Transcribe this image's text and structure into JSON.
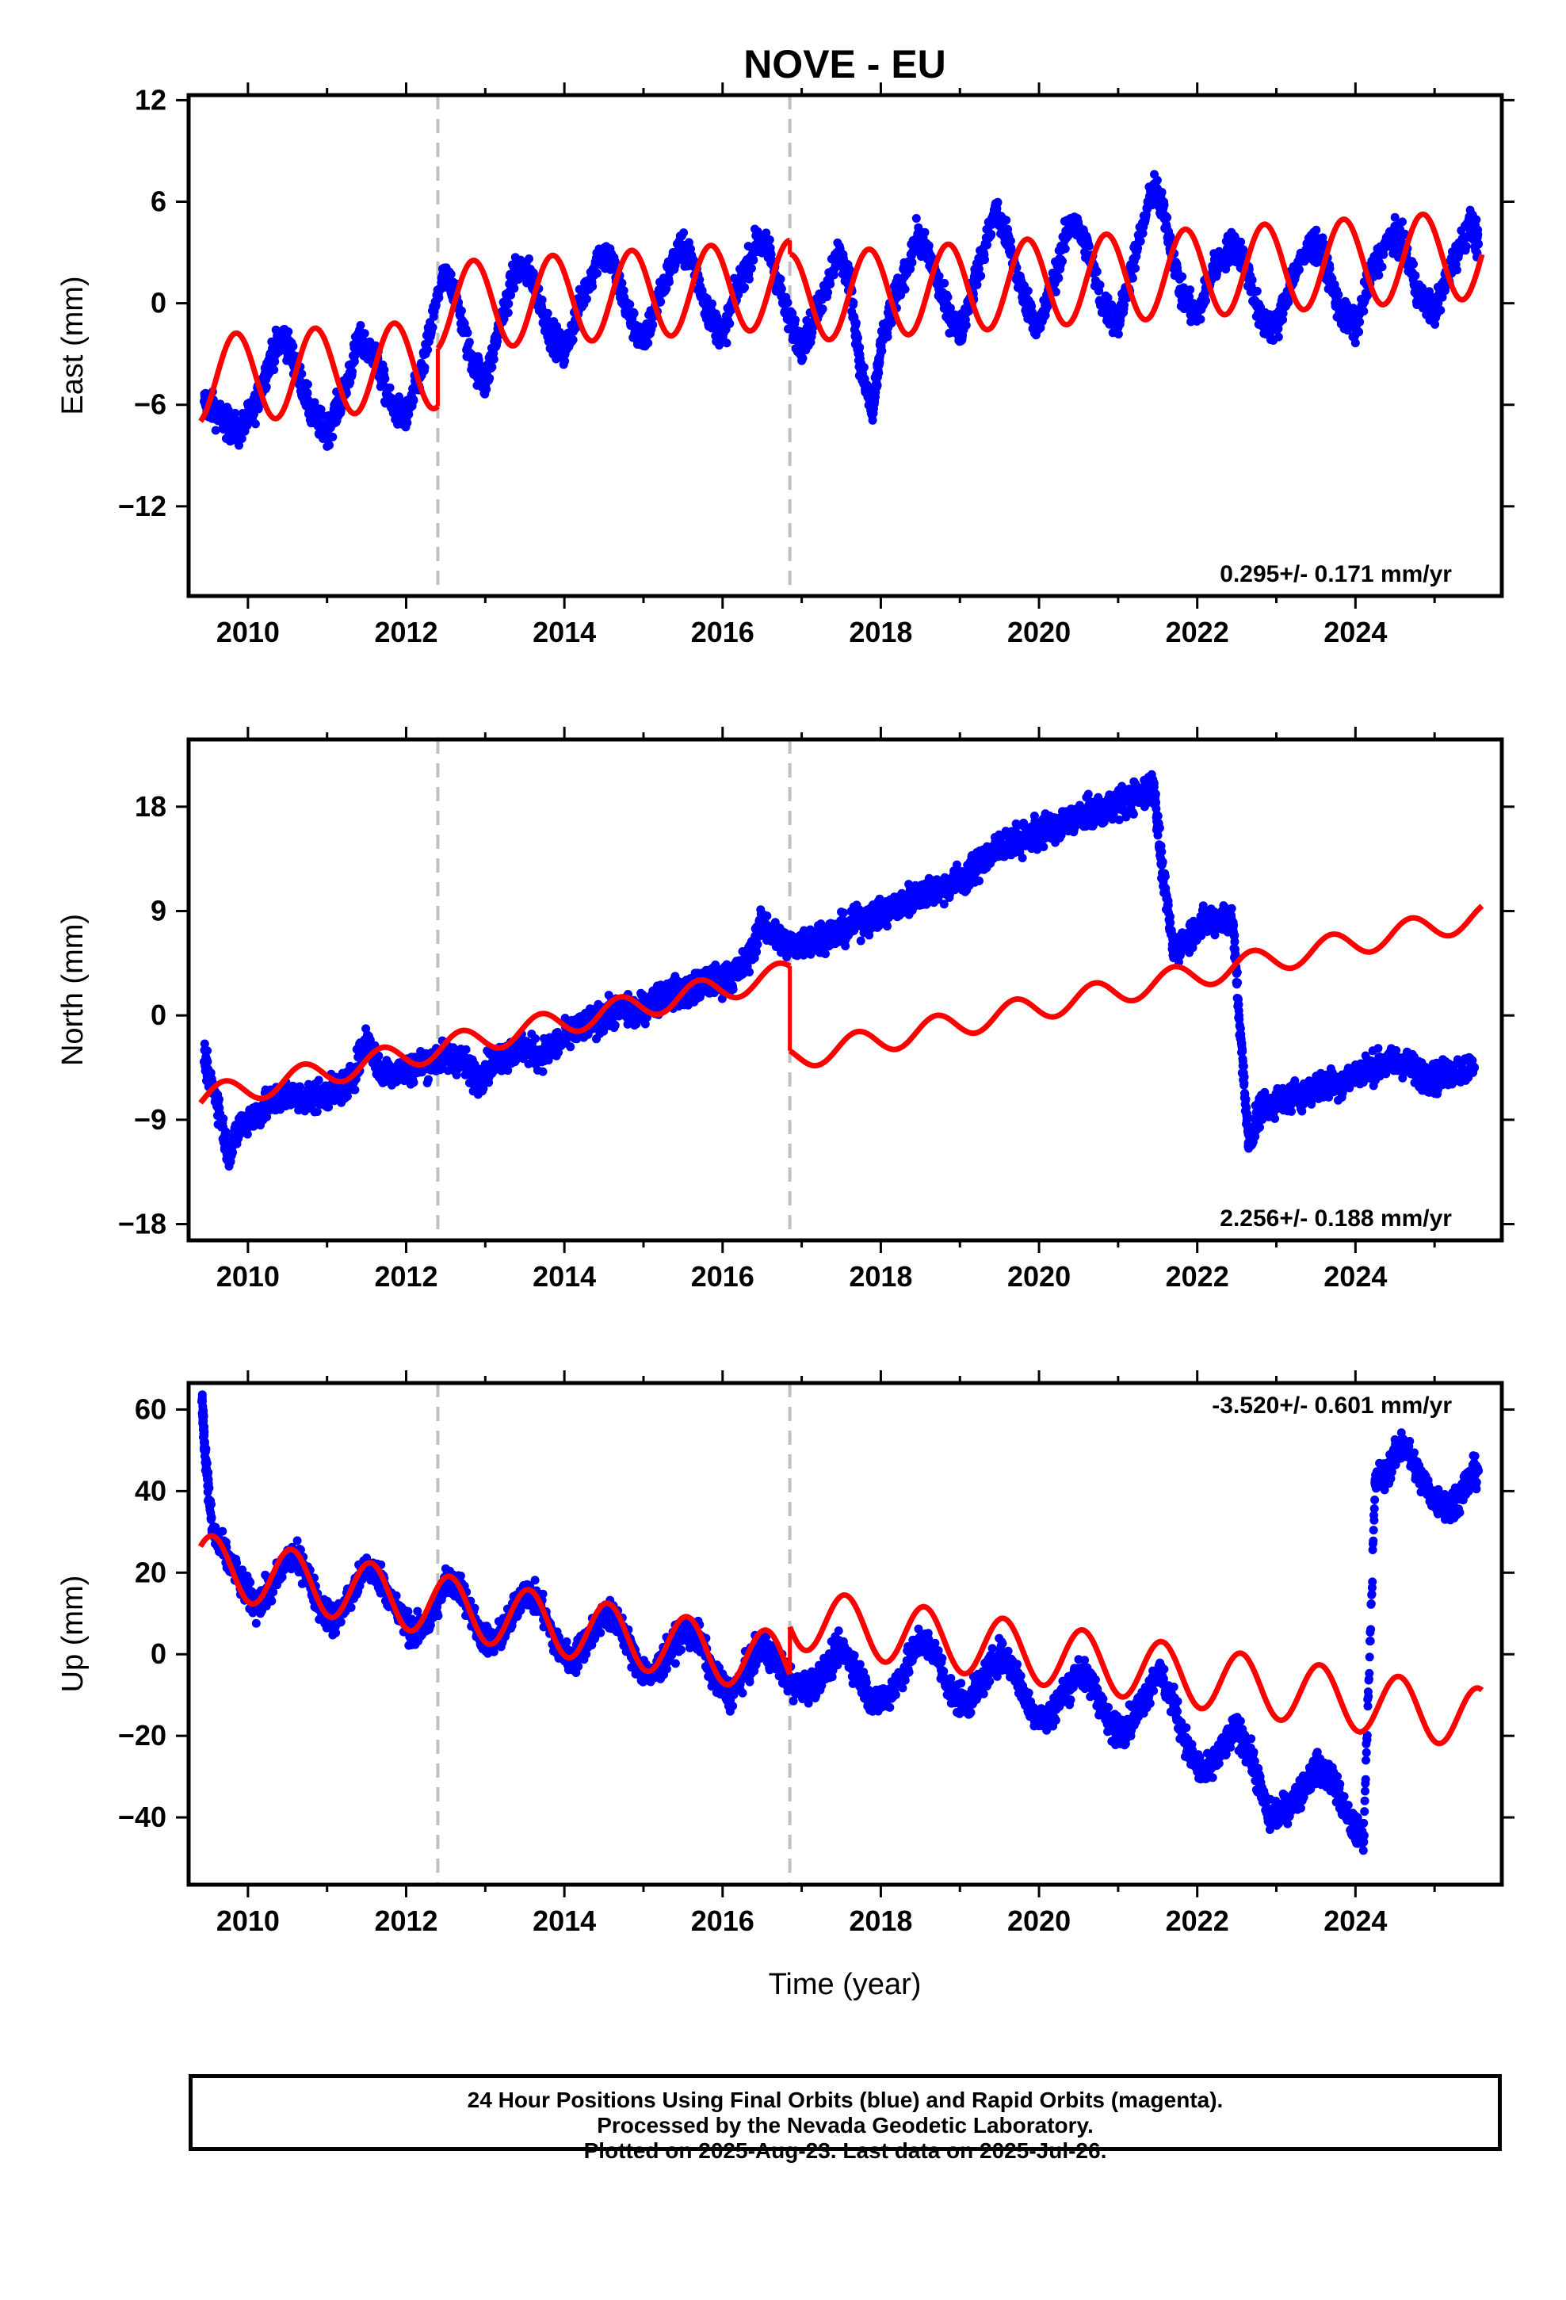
{
  "chart_data": {
    "type": "scatter",
    "title": "NOVE - EU",
    "xlabel": "Time (year)",
    "xlim": [
      2009.25,
      2025.85
    ],
    "xticks": [
      2010,
      2012,
      2014,
      2016,
      2018,
      2020,
      2022,
      2024
    ],
    "vlines": [
      2012.4,
      2016.85
    ],
    "colors": {
      "data": "#0000ff",
      "model": "#ff0000",
      "vline": "#c0c0c0"
    },
    "panels": [
      {
        "id": "east",
        "ylabel": "East (mm)",
        "ylim": [
          -17.3,
          12.3
        ],
        "yticks": [
          12,
          6,
          0,
          -6,
          -12
        ],
        "ytick_labels": [
          "12",
          "6",
          "0",
          "−6",
          "−12"
        ],
        "rate_label": "0.295+/- 0.171 mm/yr",
        "rate_position": "bottom-right",
        "model_segments": [
          {
            "x0": 2009.4,
            "x1": 2012.4,
            "offset": -4.5,
            "slope": 0.295,
            "amp": 2.6,
            "phase": 0.6
          },
          {
            "x0": 2012.4,
            "x1": 2016.85,
            "offset": -0.2,
            "slope": 0.295,
            "amp": 2.6,
            "phase": 0.6
          },
          {
            "x0": 2016.85,
            "x1": 2025.6,
            "offset": 0.3,
            "slope": 0.295,
            "amp": 2.6,
            "phase": 0.6
          }
        ],
        "observations": [
          [
            2009.45,
            -5.8
          ],
          [
            2009.6,
            -6.4
          ],
          [
            2009.75,
            -7.2
          ],
          [
            2009.9,
            -7.6
          ],
          [
            2010.1,
            -6.0
          ],
          [
            2010.3,
            -3.0
          ],
          [
            2010.45,
            -2.0
          ],
          [
            2010.6,
            -3.5
          ],
          [
            2010.8,
            -6.5
          ],
          [
            2011.0,
            -7.6
          ],
          [
            2011.2,
            -5.5
          ],
          [
            2011.4,
            -2.2
          ],
          [
            2011.6,
            -3.0
          ],
          [
            2011.8,
            -6.0
          ],
          [
            2012.0,
            -6.8
          ],
          [
            2012.2,
            -4.0
          ],
          [
            2012.45,
            1.5
          ],
          [
            2012.6,
            1.0
          ],
          [
            2012.8,
            -3.0
          ],
          [
            2013.0,
            -4.8
          ],
          [
            2013.2,
            -1.0
          ],
          [
            2013.4,
            2.2
          ],
          [
            2013.6,
            1.5
          ],
          [
            2013.8,
            -1.5
          ],
          [
            2014.0,
            -3.0
          ],
          [
            2014.2,
            0.0
          ],
          [
            2014.45,
            3.0
          ],
          [
            2014.6,
            2.5
          ],
          [
            2014.8,
            -0.5
          ],
          [
            2015.0,
            -2.5
          ],
          [
            2015.2,
            0.5
          ],
          [
            2015.45,
            3.2
          ],
          [
            2015.6,
            2.8
          ],
          [
            2015.8,
            -0.3
          ],
          [
            2016.0,
            -2.0
          ],
          [
            2016.2,
            1.0
          ],
          [
            2016.45,
            3.8
          ],
          [
            2016.6,
            3.0
          ],
          [
            2016.8,
            -0.5
          ],
          [
            2017.0,
            -2.5
          ],
          [
            2017.2,
            -0.5
          ],
          [
            2017.45,
            3.0
          ],
          [
            2017.6,
            1.5
          ],
          [
            2017.75,
            -4.0
          ],
          [
            2017.9,
            -6.5
          ],
          [
            2018.0,
            -2.5
          ],
          [
            2018.2,
            0.5
          ],
          [
            2018.45,
            3.8
          ],
          [
            2018.6,
            3.0
          ],
          [
            2018.8,
            0.0
          ],
          [
            2019.0,
            -1.8
          ],
          [
            2019.2,
            1.5
          ],
          [
            2019.45,
            5.5
          ],
          [
            2019.6,
            3.8
          ],
          [
            2019.8,
            0.5
          ],
          [
            2020.0,
            -1.5
          ],
          [
            2020.2,
            1.5
          ],
          [
            2020.4,
            5.0
          ],
          [
            2020.6,
            3.5
          ],
          [
            2020.8,
            0.0
          ],
          [
            2021.0,
            -1.2
          ],
          [
            2021.2,
            2.5
          ],
          [
            2021.45,
            7.0
          ],
          [
            2021.6,
            5.0
          ],
          [
            2021.8,
            0.5
          ],
          [
            2022.0,
            -0.8
          ],
          [
            2022.2,
            2.0
          ],
          [
            2022.45,
            3.5
          ],
          [
            2022.6,
            2.5
          ],
          [
            2022.8,
            -1.0
          ],
          [
            2023.0,
            -1.5
          ],
          [
            2023.2,
            1.5
          ],
          [
            2023.45,
            3.5
          ],
          [
            2023.6,
            2.8
          ],
          [
            2023.8,
            -0.5
          ],
          [
            2024.0,
            -1.5
          ],
          [
            2024.2,
            1.8
          ],
          [
            2024.45,
            4.0
          ],
          [
            2024.6,
            3.5
          ],
          [
            2024.8,
            0.5
          ],
          [
            2025.0,
            -0.5
          ],
          [
            2025.2,
            2.0
          ],
          [
            2025.45,
            4.8
          ],
          [
            2025.55,
            3.5
          ]
        ]
      },
      {
        "id": "north",
        "ylabel": "North (mm)",
        "ylim": [
          -19.4,
          23.8
        ],
        "yticks": [
          18,
          9,
          0,
          -9,
          -18
        ],
        "ytick_labels": [
          "18",
          "9",
          "0",
          "−9",
          "−18"
        ],
        "rate_label": "2.256+/- 0.188 mm/yr",
        "rate_position": "bottom-right",
        "model_segments": [
          {
            "x0": 2009.4,
            "x1": 2016.85,
            "offset": -7.2,
            "slope": 1.45,
            "amp": 1.1,
            "phase": 0.45
          },
          {
            "x0": 2016.85,
            "x1": 2025.6,
            "offset": -3.7,
            "slope": 1.4,
            "amp": 1.1,
            "phase": 0.45
          }
        ],
        "observations": [
          [
            2009.45,
            -4.0
          ],
          [
            2009.6,
            -7.0
          ],
          [
            2009.75,
            -12.0
          ],
          [
            2009.9,
            -9.5
          ],
          [
            2010.1,
            -8.5
          ],
          [
            2010.3,
            -7.5
          ],
          [
            2010.5,
            -6.8
          ],
          [
            2010.7,
            -7.2
          ],
          [
            2010.9,
            -7.0
          ],
          [
            2011.1,
            -6.5
          ],
          [
            2011.3,
            -5.8
          ],
          [
            2011.5,
            -2.0
          ],
          [
            2011.7,
            -5.0
          ],
          [
            2011.9,
            -4.8
          ],
          [
            2012.1,
            -4.5
          ],
          [
            2012.3,
            -4.0
          ],
          [
            2012.5,
            -3.5
          ],
          [
            2012.7,
            -3.8
          ],
          [
            2012.9,
            -5.5
          ],
          [
            2013.1,
            -4.0
          ],
          [
            2013.3,
            -3.2
          ],
          [
            2013.5,
            -2.8
          ],
          [
            2013.7,
            -3.5
          ],
          [
            2013.9,
            -2.5
          ],
          [
            2014.1,
            -1.5
          ],
          [
            2014.3,
            -0.8
          ],
          [
            2014.5,
            0.0
          ],
          [
            2014.7,
            0.5
          ],
          [
            2014.9,
            0.2
          ],
          [
            2015.1,
            1.2
          ],
          [
            2015.3,
            1.8
          ],
          [
            2015.5,
            2.0
          ],
          [
            2015.7,
            2.5
          ],
          [
            2015.9,
            3.0
          ],
          [
            2016.1,
            3.2
          ],
          [
            2016.3,
            4.5
          ],
          [
            2016.5,
            8.0
          ],
          [
            2016.7,
            6.5
          ],
          [
            2016.9,
            6.0
          ],
          [
            2017.1,
            6.5
          ],
          [
            2017.3,
            7.0
          ],
          [
            2017.5,
            7.2
          ],
          [
            2017.7,
            8.0
          ],
          [
            2017.9,
            8.5
          ],
          [
            2018.1,
            9.0
          ],
          [
            2018.3,
            9.8
          ],
          [
            2018.5,
            10.5
          ],
          [
            2018.7,
            10.8
          ],
          [
            2018.9,
            11.5
          ],
          [
            2019.1,
            12.0
          ],
          [
            2019.3,
            13.5
          ],
          [
            2019.5,
            14.5
          ],
          [
            2019.7,
            15.0
          ],
          [
            2019.9,
            15.5
          ],
          [
            2020.1,
            16.0
          ],
          [
            2020.3,
            16.5
          ],
          [
            2020.5,
            17.2
          ],
          [
            2020.7,
            17.5
          ],
          [
            2020.9,
            18.0
          ],
          [
            2021.1,
            18.5
          ],
          [
            2021.3,
            19.0
          ],
          [
            2021.45,
            20.0
          ],
          [
            2021.55,
            13.0
          ],
          [
            2021.7,
            5.5
          ],
          [
            2021.9,
            7.0
          ],
          [
            2022.1,
            8.0
          ],
          [
            2022.3,
            8.5
          ],
          [
            2022.45,
            8.0
          ],
          [
            2022.55,
            -2.0
          ],
          [
            2022.65,
            -11.0
          ],
          [
            2022.8,
            -8.0
          ],
          [
            2023.0,
            -7.5
          ],
          [
            2023.2,
            -7.0
          ],
          [
            2023.4,
            -6.5
          ],
          [
            2023.6,
            -6.0
          ],
          [
            2023.8,
            -5.8
          ],
          [
            2024.0,
            -5.0
          ],
          [
            2024.2,
            -4.5
          ],
          [
            2024.4,
            -4.2
          ],
          [
            2024.6,
            -4.0
          ],
          [
            2024.8,
            -5.0
          ],
          [
            2025.0,
            -5.5
          ],
          [
            2025.2,
            -4.8
          ],
          [
            2025.5,
            -4.5
          ]
        ]
      },
      {
        "id": "up",
        "ylabel": "Up (mm)",
        "ylim": [
          -56.5,
          66.5
        ],
        "yticks": [
          60,
          40,
          20,
          0,
          -20,
          -40
        ],
        "ytick_labels": [
          "60",
          "40",
          "20",
          "0",
          "−20",
          "−40"
        ],
        "rate_label": "-3.520+/- 0.601 mm/yr",
        "rate_position": "top-right",
        "model_segments": [
          {
            "x0": 2009.4,
            "x1": 2016.85,
            "offset": 22.0,
            "slope": -3.3,
            "amp": 7.5,
            "phase": 0.3
          },
          {
            "x0": 2016.85,
            "x1": 2025.6,
            "offset": 9.0,
            "slope": -2.85,
            "amp": 7.5,
            "phase": 0.3
          }
        ],
        "observations": [
          [
            2009.42,
            62.0
          ],
          [
            2009.45,
            52.0
          ],
          [
            2009.55,
            30.0
          ],
          [
            2009.7,
            25.0
          ],
          [
            2009.9,
            18.0
          ],
          [
            2010.1,
            12.0
          ],
          [
            2010.3,
            16.0
          ],
          [
            2010.5,
            24.0
          ],
          [
            2010.7,
            22.0
          ],
          [
            2010.9,
            12.0
          ],
          [
            2011.1,
            8.0
          ],
          [
            2011.3,
            14.0
          ],
          [
            2011.5,
            22.0
          ],
          [
            2011.7,
            18.0
          ],
          [
            2011.9,
            10.0
          ],
          [
            2012.1,
            5.0
          ],
          [
            2012.3,
            8.0
          ],
          [
            2012.5,
            18.0
          ],
          [
            2012.7,
            16.0
          ],
          [
            2012.9,
            6.0
          ],
          [
            2013.1,
            2.0
          ],
          [
            2013.3,
            8.0
          ],
          [
            2013.5,
            16.0
          ],
          [
            2013.7,
            12.0
          ],
          [
            2013.9,
            2.0
          ],
          [
            2014.1,
            -2.0
          ],
          [
            2014.3,
            4.0
          ],
          [
            2014.5,
            10.0
          ],
          [
            2014.7,
            8.0
          ],
          [
            2014.9,
            -2.0
          ],
          [
            2015.1,
            -6.0
          ],
          [
            2015.3,
            0.0
          ],
          [
            2015.5,
            6.0
          ],
          [
            2015.7,
            4.0
          ],
          [
            2015.9,
            -6.0
          ],
          [
            2016.1,
            -10.0
          ],
          [
            2016.3,
            -4.0
          ],
          [
            2016.5,
            2.0
          ],
          [
            2016.7,
            -2.0
          ],
          [
            2016.9,
            -8.0
          ],
          [
            2017.1,
            -8.0
          ],
          [
            2017.3,
            -4.0
          ],
          [
            2017.5,
            2.0
          ],
          [
            2017.7,
            -4.0
          ],
          [
            2017.9,
            -12.0
          ],
          [
            2018.1,
            -10.0
          ],
          [
            2018.3,
            -4.0
          ],
          [
            2018.5,
            4.0
          ],
          [
            2018.7,
            0.0
          ],
          [
            2018.9,
            -10.0
          ],
          [
            2019.1,
            -12.0
          ],
          [
            2019.3,
            -6.0
          ],
          [
            2019.5,
            0.0
          ],
          [
            2019.7,
            -4.0
          ],
          [
            2019.9,
            -14.0
          ],
          [
            2020.1,
            -16.0
          ],
          [
            2020.3,
            -10.0
          ],
          [
            2020.5,
            -4.0
          ],
          [
            2020.7,
            -8.0
          ],
          [
            2020.9,
            -18.0
          ],
          [
            2021.1,
            -18.0
          ],
          [
            2021.3,
            -12.0
          ],
          [
            2021.5,
            -4.0
          ],
          [
            2021.7,
            -12.0
          ],
          [
            2021.9,
            -24.0
          ],
          [
            2022.1,
            -30.0
          ],
          [
            2022.3,
            -24.0
          ],
          [
            2022.5,
            -18.0
          ],
          [
            2022.7,
            -26.0
          ],
          [
            2022.9,
            -40.0
          ],
          [
            2023.1,
            -38.0
          ],
          [
            2023.3,
            -34.0
          ],
          [
            2023.5,
            -28.0
          ],
          [
            2023.7,
            -30.0
          ],
          [
            2023.9,
            -40.0
          ],
          [
            2024.1,
            -46.0
          ],
          [
            2024.25,
            42.0
          ],
          [
            2024.4,
            45.0
          ],
          [
            2024.6,
            52.0
          ],
          [
            2024.8,
            44.0
          ],
          [
            2025.0,
            38.0
          ],
          [
            2025.2,
            36.0
          ],
          [
            2025.4,
            42.0
          ],
          [
            2025.55,
            45.0
          ]
        ]
      }
    ]
  },
  "footer": {
    "line1": "24 Hour Positions Using Final Orbits (blue) and Rapid Orbits (magenta).",
    "line2": "Processed by the Nevada Geodetic Laboratory.",
    "line3": "Plotted on 2025-Aug-23. Last data on 2025-Jul-26."
  }
}
